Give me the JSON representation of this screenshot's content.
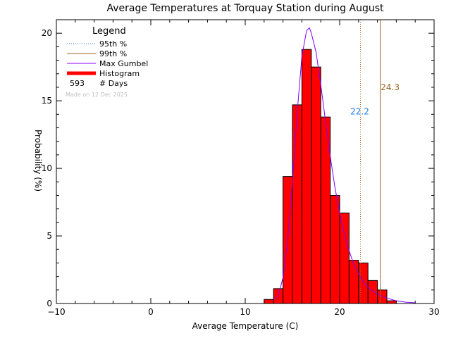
{
  "chart_data": {
    "type": "bar",
    "title": "Average Temperatures at Torquay Station during August",
    "xlabel": "Average Temperature (C)",
    "ylabel": "Probability (%)",
    "xlim": [
      -10,
      30
    ],
    "ylim": [
      0,
      21
    ],
    "xticks": [
      -10,
      0,
      10,
      20,
      30
    ],
    "yticks": [
      0,
      5,
      10,
      15,
      20
    ],
    "x_tick_labels": [
      "−10",
      "0",
      "10",
      "20",
      "30"
    ],
    "y_tick_labels": [
      "0",
      "5",
      "10",
      "15",
      "20"
    ],
    "grid": false,
    "legend_position": "top-left",
    "legend": {
      "title": "Legend",
      "p95_label": "95th %",
      "p99_label": "99th %",
      "gumbel_label": "Max Gumbel",
      "hist_label": "Histogram",
      "days_count": "593",
      "days_label": "# Days"
    },
    "footnote": "Made on 12 Dec 2025",
    "histogram": {
      "bin_width": 1,
      "bin_left_edges": [
        12,
        13,
        14,
        15,
        16,
        17,
        18,
        19,
        20,
        21,
        22,
        23,
        24,
        25
      ],
      "values": [
        0.3,
        1.1,
        9.4,
        14.7,
        18.8,
        17.5,
        13.8,
        8.0,
        6.7,
        3.2,
        3.0,
        1.7,
        1.0,
        0.2
      ],
      "fill_color": "#ff0000",
      "edge_color": "#000000"
    },
    "gumbel": {
      "name": "Max Gumbel",
      "x": [
        13,
        13.5,
        14,
        14.5,
        15,
        15.5,
        16,
        16.5,
        16.8,
        17,
        17.5,
        18,
        18.5,
        19,
        19.5,
        20,
        20.5,
        21,
        21.5,
        22,
        22.5,
        23,
        23.5,
        24,
        25,
        26,
        27,
        28
      ],
      "y": [
        0.3,
        0.6,
        1.9,
        4.7,
        9.0,
        14.1,
        18.3,
        20.2,
        20.4,
        20.0,
        18.6,
        16.2,
        13.5,
        10.9,
        8.6,
        6.7,
        5.1,
        3.9,
        2.9,
        2.2,
        1.6,
        1.2,
        0.9,
        0.7,
        0.4,
        0.2,
        0.1,
        0.05
      ],
      "color": "#8000ff"
    },
    "p95": {
      "label": "95th %",
      "value": 22.2,
      "value_label": "22.2",
      "color": "#2080e0"
    },
    "p99": {
      "label": "99th %",
      "value": 24.3,
      "value_label": "24.3",
      "color": "#a0621e"
    }
  }
}
